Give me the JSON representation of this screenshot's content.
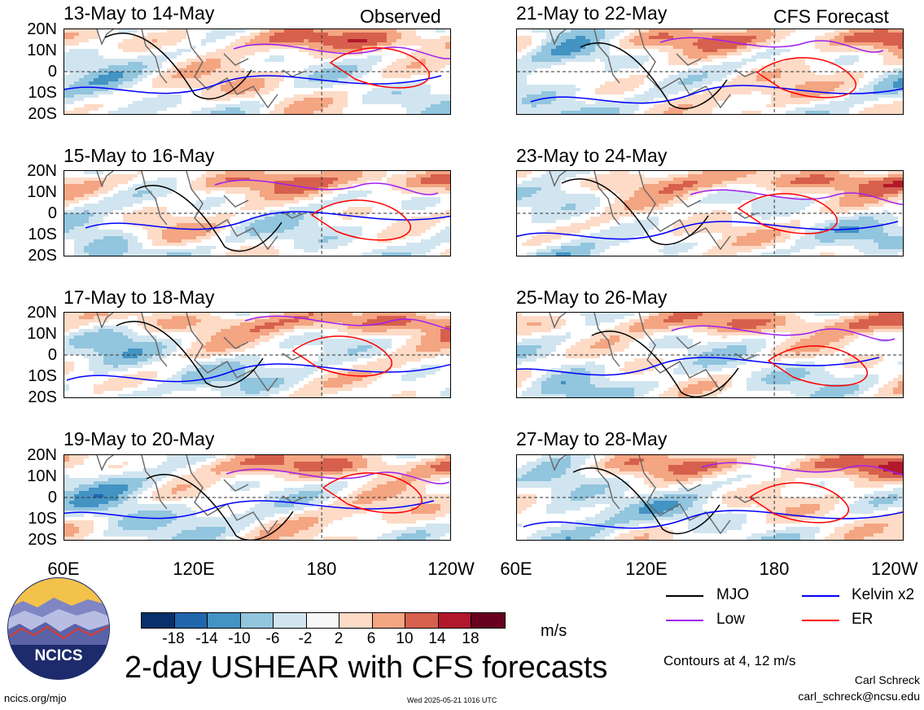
{
  "labels": {
    "observed": "Observed",
    "forecast": "CFS Forecast",
    "title": "2-day USHEAR with CFS forecasts",
    "units": "m/s",
    "contours": "Contours at 4, 12 m/s",
    "url": "ncics.org/mjo",
    "timestamp": "Wed 2025-05-21 1016 UTC",
    "author": "Carl Schreck",
    "email": "carl_schreck@ncsu.edu",
    "logo_text": "NCICS"
  },
  "panels": [
    {
      "label": "13-May to 14-May"
    },
    {
      "label": "15-May to 16-May"
    },
    {
      "label": "17-May to 18-May"
    },
    {
      "label": "19-May to 20-May"
    },
    {
      "label": "21-May to 22-May"
    },
    {
      "label": "23-May to 24-May"
    },
    {
      "label": "25-May to 26-May"
    },
    {
      "label": "27-May to 28-May"
    }
  ],
  "lat_labels": [
    "20N",
    "10N",
    "0",
    "10S",
    "20S"
  ],
  "lon_labels": [
    "60E",
    "120E",
    "180",
    "120W"
  ],
  "colorbar": {
    "ticks": [
      "-18",
      "-14",
      "-10",
      "-6",
      "-2",
      "2",
      "6",
      "10",
      "14",
      "18"
    ],
    "colors": [
      "#08306b",
      "#2166ac",
      "#4393c3",
      "#92c5de",
      "#d1e5f0",
      "#f7f7f7",
      "#fddbc7",
      "#f4a582",
      "#d6604d",
      "#b2182b",
      "#67001f"
    ]
  },
  "legend": [
    {
      "label": "MJO",
      "color": "#000000"
    },
    {
      "label": "Kelvin x2",
      "color": "#0000ff"
    },
    {
      "label": "Low",
      "color": "#a020f0"
    },
    {
      "label": "ER",
      "color": "#ff0000"
    }
  ]
}
